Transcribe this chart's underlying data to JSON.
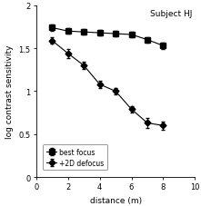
{
  "title": "Subject HJ",
  "xlabel": "distance (m)",
  "ylabel": "log contrast sensitivity",
  "xlim": [
    0,
    10
  ],
  "ylim": [
    0,
    2
  ],
  "xticks": [
    0,
    2,
    4,
    6,
    8,
    10
  ],
  "yticks": [
    0,
    0.5,
    1,
    1.5,
    2
  ],
  "ytick_labels": [
    "0",
    "0.5",
    "1",
    "1.5",
    "2"
  ],
  "best_focus_x": [
    1,
    2,
    3,
    4,
    5,
    6,
    7,
    8
  ],
  "best_focus_y": [
    1.74,
    1.7,
    1.69,
    1.68,
    1.67,
    1.66,
    1.6,
    1.53
  ],
  "best_focus_yerr": [
    0.04,
    0.03,
    0.03,
    0.03,
    0.03,
    0.03,
    0.03,
    0.04
  ],
  "defocus_x": [
    1,
    2,
    3,
    4,
    5,
    6,
    7,
    8
  ],
  "defocus_y": [
    1.59,
    1.44,
    1.3,
    1.08,
    1.0,
    0.79,
    0.63,
    0.6
  ],
  "defocus_yerr": [
    0.04,
    0.05,
    0.04,
    0.04,
    0.04,
    0.04,
    0.06,
    0.05
  ],
  "line_color": "#000000",
  "marker_color": "#000000",
  "legend_best": "best focus",
  "legend_defocus": "+2D defocus",
  "bg_color": "#ffffff"
}
